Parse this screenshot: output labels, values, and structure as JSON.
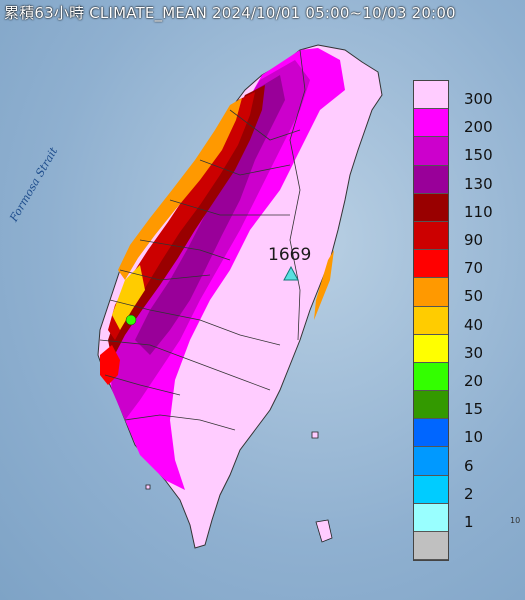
{
  "title": "累積63小時 CLIMATE_MEAN 2024/10/01 05:00~10/03 20:00",
  "strait_label": "Formosa Strait",
  "peak": {
    "value": "1669",
    "marker_color": "#58e0e0"
  },
  "corner_text": "10",
  "legend": [
    {
      "label": "300",
      "color": "#ffccff"
    },
    {
      "label": "200",
      "color": "#ff00ff"
    },
    {
      "label": "150",
      "color": "#cc00cc"
    },
    {
      "label": "130",
      "color": "#990099"
    },
    {
      "label": "110",
      "color": "#990000"
    },
    {
      "label": "90",
      "color": "#cc0000"
    },
    {
      "label": "70",
      "color": "#ff0000"
    },
    {
      "label": "50",
      "color": "#ff9900"
    },
    {
      "label": "40",
      "color": "#ffcc00"
    },
    {
      "label": "30",
      "color": "#ffff00"
    },
    {
      "label": "20",
      "color": "#33ff00"
    },
    {
      "label": "15",
      "color": "#339900"
    },
    {
      "label": "10",
      "color": "#0066ff"
    },
    {
      "label": "6",
      "color": "#0099ff"
    },
    {
      "label": "2",
      "color": "#00ccff"
    },
    {
      "label": "1",
      "color": "#99ffff"
    },
    {
      "label": "",
      "color": "#c0c0c0"
    }
  ]
}
